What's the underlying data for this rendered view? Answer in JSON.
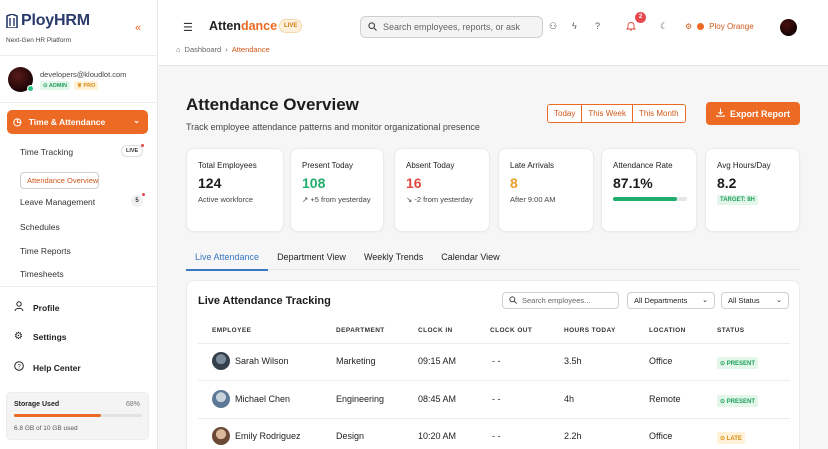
{
  "sidebar": {
    "brand": "PloyHRM",
    "tagline": "Next-Gen HR Platform",
    "user_email": "developers@kloudlot.com",
    "badge_admin": "⊙ ADMIN",
    "badge_pro": "♕ PRO",
    "active_section": "Time & Attendance",
    "sub_items": [
      {
        "label": "Time Tracking",
        "badge": "LIVE"
      },
      {
        "label": "Attendance Overview"
      },
      {
        "label": "Leave Management",
        "badge": "5"
      },
      {
        "label": "Schedules"
      },
      {
        "label": "Time Reports"
      },
      {
        "label": "Timesheets"
      }
    ],
    "nav": [
      {
        "label": "Profile",
        "icon": "user-icon"
      },
      {
        "label": "Settings",
        "icon": "gear-icon"
      },
      {
        "label": "Help Center",
        "icon": "help-icon"
      }
    ],
    "storage": {
      "title": "Storage Used",
      "percent_label": "68%",
      "fill": 0.68,
      "detail": "6.8 GB of 10 GB used"
    }
  },
  "header": {
    "title_main": "Atten",
    "title_accent": "dance",
    "live_badge": "LIVE",
    "search_placeholder": "Search employees, reports, or ask",
    "notification_count": "2",
    "org_name": "Ploy Orange",
    "breadcrumb_home": "Dashboard",
    "breadcrumb_sep": "›",
    "breadcrumb_current": "Attendance"
  },
  "page": {
    "title": "Attendance Overview",
    "subtitle": "Track employee attendance patterns and monitor organizational presence",
    "ranges": [
      "Today",
      "This Week",
      "This Month"
    ],
    "export_label": "Export Report"
  },
  "stats": [
    {
      "label": "Total Employees",
      "value": "124",
      "sub": "Active workforce",
      "color": "#1c1c1c"
    },
    {
      "label": "Present Today",
      "value": "108",
      "sub": "↗ +5 from yesterday",
      "color": "#1fae6b"
    },
    {
      "label": "Absent Today",
      "value": "16",
      "sub": "↘ -2 from yesterday",
      "color": "#e0473c"
    },
    {
      "label": "Late Arrivals",
      "value": "8",
      "sub": "After 9:00 AM",
      "color": "#e6a02a"
    },
    {
      "label": "Attendance Rate",
      "value": "87.1%",
      "fill": 0.871,
      "color": "#1c1c1c"
    },
    {
      "label": "Avg Hours/Day",
      "value": "8.2",
      "target": "TARGET: 8H",
      "color": "#1c1c1c"
    }
  ],
  "tabs": [
    "Live Attendance",
    "Department View",
    "Weekly Trends",
    "Calendar View"
  ],
  "table": {
    "title": "Live Attendance Tracking",
    "search_placeholder": "Search employees...",
    "dept_filter": "All Departments",
    "status_filter": "All Status",
    "headers": [
      "EMPLOYEE",
      "DEPARTMENT",
      "CLOCK IN",
      "CLOCK OUT",
      "HOURS TODAY",
      "LOCATION",
      "STATUS"
    ],
    "rows": [
      {
        "name": "Sarah Wilson",
        "dept": "Marketing",
        "in": "09:15 AM",
        "out": "- -",
        "hours": "3.5h",
        "loc": "Office",
        "status": "⊙ PRESENT",
        "kind": "present"
      },
      {
        "name": "Michael Chen",
        "dept": "Engineering",
        "in": "08:45 AM",
        "out": "- -",
        "hours": "4h",
        "loc": "Remote",
        "status": "⊙ PRESENT",
        "kind": "present"
      },
      {
        "name": "Emily Rodriguez",
        "dept": "Design",
        "in": "10:20 AM",
        "out": "- -",
        "hours": "2.2h",
        "loc": "Office",
        "status": "⊙ LATE",
        "kind": "late"
      }
    ]
  },
  "colors": {
    "accent": "#ec6a23",
    "present": "#1fae6b",
    "absent": "#e0473c",
    "late": "#e6a02a",
    "tab_active": "#3a78c4"
  }
}
